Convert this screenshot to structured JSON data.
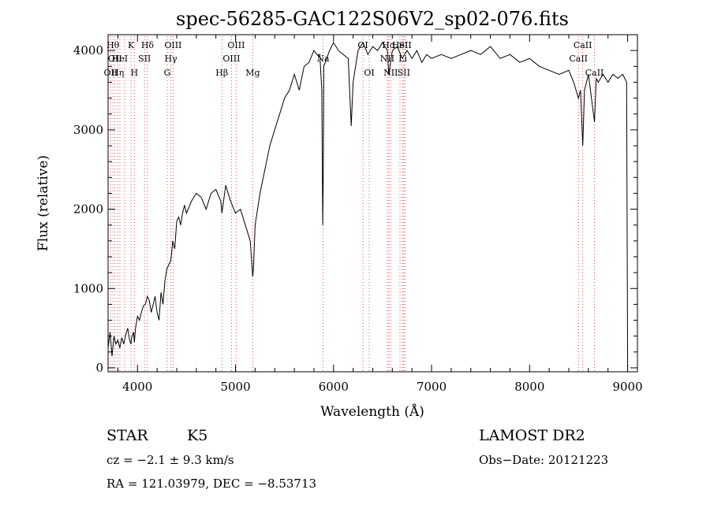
{
  "chart_data": {
    "type": "line",
    "title": "spec-56285-GAC122S06V2_sp02-076.fits",
    "xlabel": "Wavelength (Å)",
    "ylabel": "Flux (relative)",
    "xlim": [
      3700,
      9100
    ],
    "ylim": [
      -50,
      4200
    ],
    "xticks": [
      4000,
      5000,
      6000,
      7000,
      8000,
      9000
    ],
    "yticks": [
      0,
      1000,
      2000,
      3000,
      4000
    ],
    "grid": false,
    "series": [
      {
        "color": "#000000",
        "x": [
          3700,
          3720,
          3740,
          3760,
          3780,
          3800,
          3820,
          3840,
          3860,
          3880,
          3900,
          3920,
          3934,
          3940,
          3960,
          3968,
          3980,
          4000,
          4020,
          4040,
          4060,
          4080,
          4101,
          4120,
          4140,
          4160,
          4180,
          4200,
          4220,
          4240,
          4260,
          4280,
          4300,
          4320,
          4340,
          4360,
          4380,
          4400,
          4420,
          4440,
          4460,
          4480,
          4500,
          4550,
          4600,
          4650,
          4700,
          4750,
          4800,
          4850,
          4861,
          4900,
          4950,
          5000,
          5050,
          5100,
          5150,
          5175,
          5183,
          5200,
          5250,
          5300,
          5350,
          5400,
          5450,
          5500,
          5550,
          5600,
          5650,
          5700,
          5750,
          5800,
          5830,
          5860,
          5880,
          5890,
          5896,
          5900,
          5930,
          5960,
          6000,
          6050,
          6100,
          6150,
          6180,
          6200,
          6250,
          6300,
          6350,
          6400,
          6450,
          6500,
          6550,
          6563,
          6600,
          6650,
          6700,
          6750,
          6800,
          6850,
          6900,
          6950,
          7000,
          7100,
          7200,
          7300,
          7400,
          7500,
          7600,
          7700,
          7800,
          7900,
          8000,
          8100,
          8200,
          8300,
          8400,
          8450,
          8498,
          8520,
          8542,
          8560,
          8600,
          8662,
          8680,
          8700,
          8750,
          8800,
          8850,
          8900,
          8950,
          8990,
          9000
        ],
        "y": [
          250,
          450,
          150,
          400,
          300,
          350,
          250,
          380,
          300,
          420,
          500,
          350,
          300,
          380,
          450,
          320,
          500,
          650,
          600,
          700,
          780,
          800,
          900,
          850,
          700,
          800,
          900,
          700,
          600,
          950,
          800,
          1100,
          1250,
          1300,
          1350,
          1600,
          1500,
          1850,
          1900,
          1800,
          1950,
          2050,
          1950,
          2100,
          2200,
          2150,
          2000,
          2200,
          2250,
          2100,
          1950,
          2300,
          2100,
          1950,
          2000,
          1800,
          1600,
          1150,
          1250,
          1800,
          2200,
          2500,
          2800,
          3000,
          3200,
          3400,
          3500,
          3700,
          3500,
          3800,
          3850,
          4000,
          3950,
          3950,
          3500,
          1800,
          2600,
          3800,
          3900,
          4000,
          4100,
          4000,
          3950,
          3900,
          3050,
          3600,
          4000,
          4100,
          3950,
          4050,
          4000,
          4100,
          4000,
          3700,
          4000,
          4050,
          3900,
          4000,
          3900,
          4000,
          3850,
          3950,
          3900,
          3950,
          3900,
          3950,
          4000,
          3950,
          4050,
          3900,
          3950,
          3850,
          3900,
          3800,
          3750,
          3700,
          3750,
          3600,
          3400,
          3500,
          2800,
          3500,
          3700,
          3100,
          3650,
          3600,
          3700,
          3600,
          3700,
          3650,
          3700,
          3600,
          0
        ]
      }
    ],
    "line_marks": [
      {
        "x": 3727,
        "label": "OII",
        "row": 3
      },
      {
        "x": 3750,
        "label": "Hθ",
        "row": 1
      },
      {
        "x": 3770,
        "label": "OII",
        "row": 2
      },
      {
        "x": 3798,
        "label": "Hη",
        "row": 3
      },
      {
        "x": 3820,
        "label": "HeI",
        "row": 2
      },
      {
        "x": 3869,
        "label": "",
        "row": 0
      },
      {
        "x": 3934,
        "label": "K",
        "row": 1
      },
      {
        "x": 3968,
        "label": "H",
        "row": 3
      },
      {
        "x": 4072,
        "label": "SII",
        "row": 2
      },
      {
        "x": 4102,
        "label": "Hδ",
        "row": 1
      },
      {
        "x": 4304,
        "label": "G",
        "row": 3
      },
      {
        "x": 4340,
        "label": "Hγ",
        "row": 2
      },
      {
        "x": 4363,
        "label": "OIII",
        "row": 1
      },
      {
        "x": 4861,
        "label": "Hβ",
        "row": 3
      },
      {
        "x": 4959,
        "label": "OIII",
        "row": 2
      },
      {
        "x": 5007,
        "label": "OIII",
        "row": 1
      },
      {
        "x": 5176,
        "label": "Mg",
        "row": 3
      },
      {
        "x": 5893,
        "label": "Na",
        "row": 2
      },
      {
        "x": 6300,
        "label": "OI",
        "row": 1
      },
      {
        "x": 6364,
        "label": "OI",
        "row": 3
      },
      {
        "x": 6548,
        "label": "NII",
        "row": 2
      },
      {
        "x": 6563,
        "label": "Hα",
        "row": 1
      },
      {
        "x": 6583,
        "label": "NII",
        "row": 3
      },
      {
        "x": 6678,
        "label": "HeI",
        "row": 1
      },
      {
        "x": 6717,
        "label": "SII",
        "row": 3
      },
      {
        "x": 6731,
        "label": "SII",
        "row": 1
      },
      {
        "x": 6707,
        "label": "Li",
        "row": 2
      },
      {
        "x": 8498,
        "label": "CaII",
        "row": 2
      },
      {
        "x": 8542,
        "label": "CaII",
        "row": 1
      },
      {
        "x": 8662,
        "label": "CaII",
        "row": 3
      }
    ]
  },
  "info": {
    "class_label": "STAR",
    "subclass_label": "K5",
    "survey": "LAMOST DR2",
    "cz": "cz = −2.1 ± 9.3 km/s",
    "obs_date": "Obs−Date: 20121223",
    "coords": "RA = 121.03979, DEC =  −8.53713"
  }
}
